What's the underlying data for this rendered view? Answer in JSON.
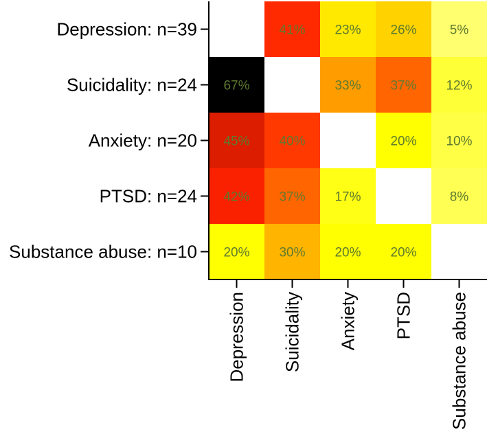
{
  "chart_data": {
    "type": "heatmap",
    "title": "",
    "row_labels": [
      "Depression: n=39",
      "Suicidality: n=24",
      "Anxiety: n=20",
      "PTSD: n=24",
      "Substance abuse: n=10"
    ],
    "column_labels": [
      "Depression",
      "Suicidality",
      "Anxiety",
      "PTSD",
      "Substance abuse"
    ],
    "values": [
      [
        null,
        41,
        23,
        26,
        5
      ],
      [
        67,
        null,
        33,
        37,
        12
      ],
      [
        45,
        40,
        null,
        20,
        10
      ],
      [
        42,
        37,
        17,
        null,
        8
      ],
      [
        20,
        30,
        20,
        20,
        null
      ]
    ],
    "cell_labels": [
      [
        "",
        "41%",
        "23%",
        "26%",
        "5%"
      ],
      [
        "67%",
        "",
        "33%",
        "37%",
        "12%"
      ],
      [
        "45%",
        "40%",
        "",
        "20%",
        "10%"
      ],
      [
        "42%",
        "37%",
        "17%",
        "",
        "8%"
      ],
      [
        "20%",
        "30%",
        "20%",
        "20%",
        ""
      ]
    ],
    "value_unit": "%",
    "colormap": {
      "name": "heat",
      "domain": [
        0,
        67
      ],
      "colors": [
        "#ffffff",
        "#ffff66",
        "#ffff00",
        "#ff9900",
        "#ff2200",
        "#000000"
      ]
    },
    "label_color": "#5e7a2f",
    "diagonal": "blank"
  }
}
